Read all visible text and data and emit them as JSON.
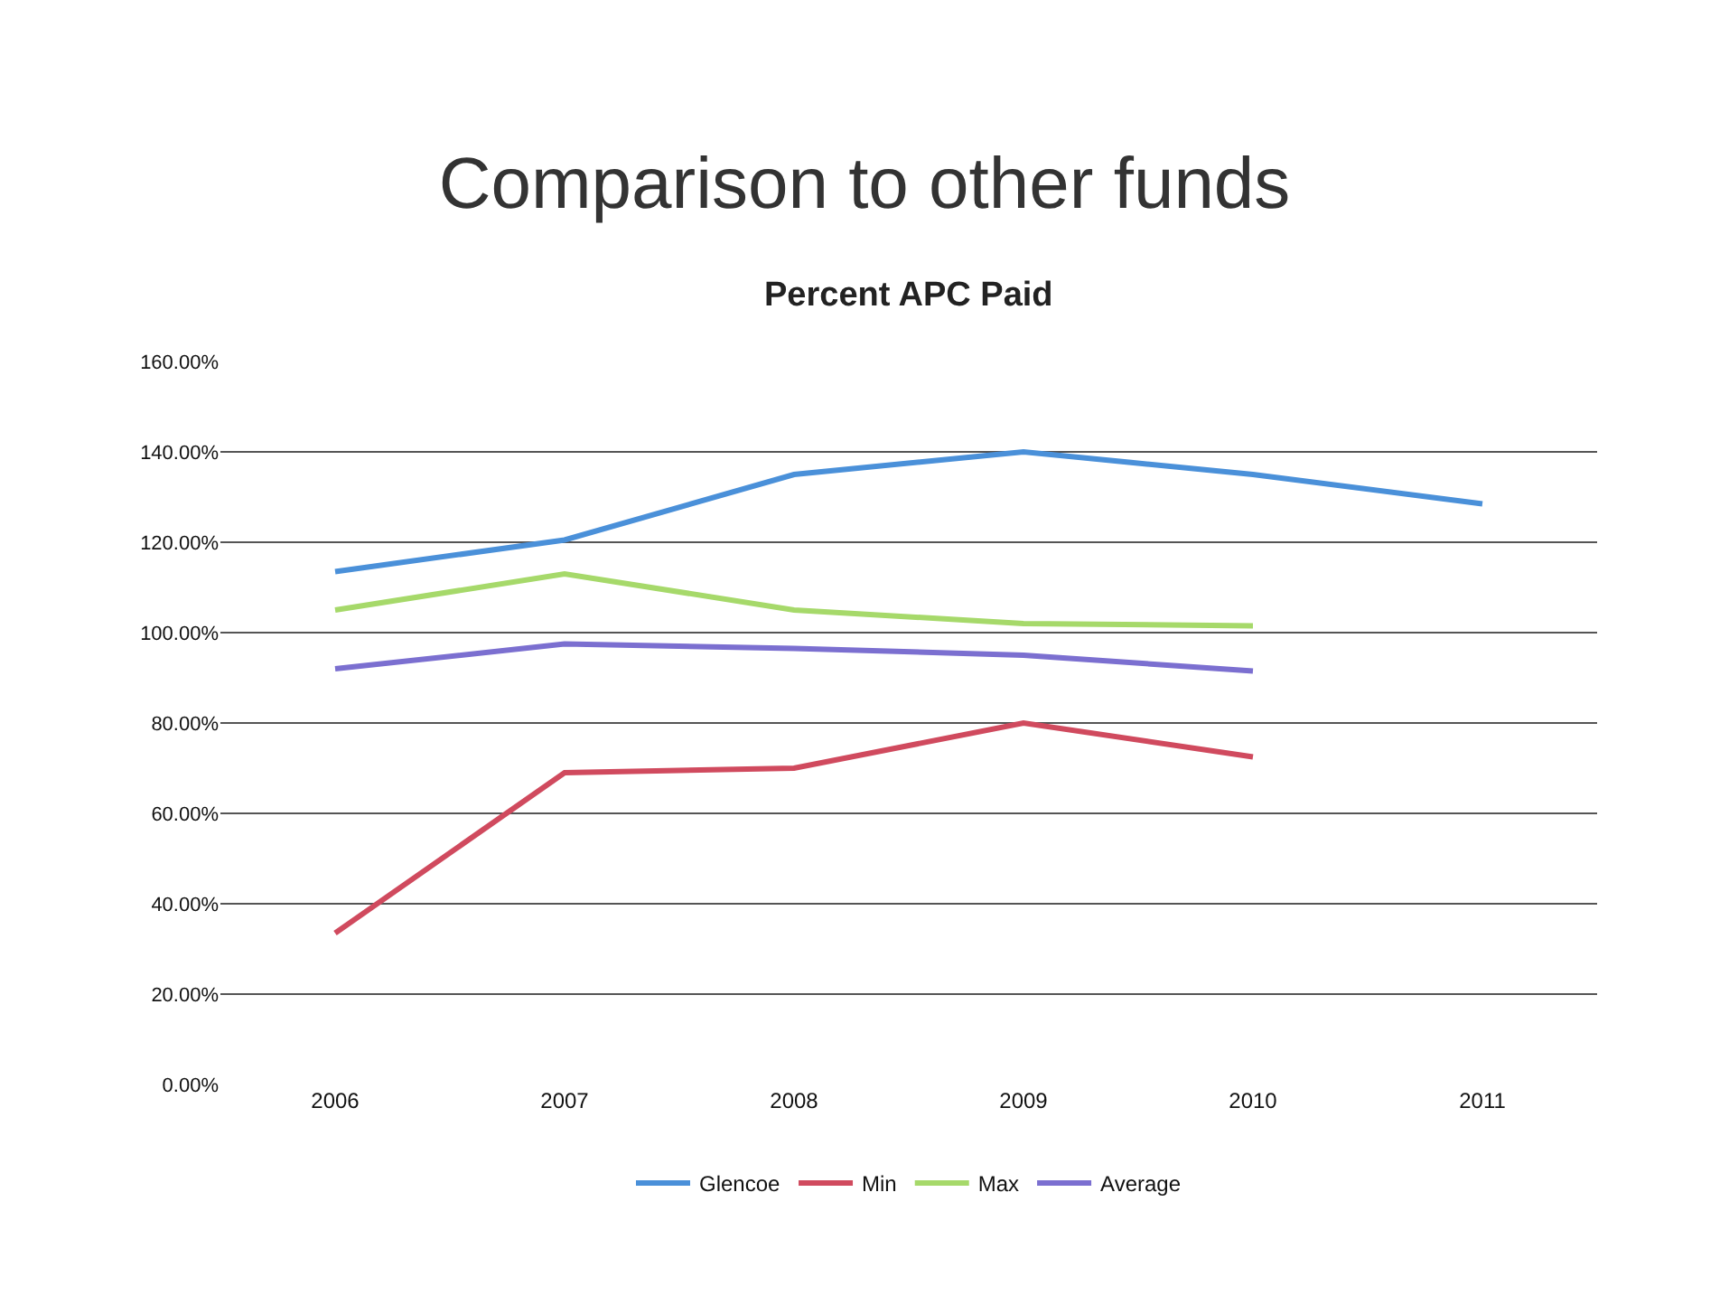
{
  "chart_data": {
    "type": "line",
    "title": "Comparison to other funds",
    "subtitle": "Percent APC Paid",
    "categories": [
      "2006",
      "2007",
      "2008",
      "2009",
      "2010",
      "2011"
    ],
    "series": [
      {
        "name": "Glencoe",
        "color": "#4a90d9",
        "values": [
          113.5,
          120.5,
          135,
          140,
          135,
          128.5
        ]
      },
      {
        "name": "Min",
        "color": "#d04a5e",
        "values": [
          33.5,
          69,
          70,
          80,
          72.5,
          null
        ]
      },
      {
        "name": "Max",
        "color": "#a6d96a",
        "values": [
          105,
          113,
          105,
          102,
          101.5,
          null
        ]
      },
      {
        "name": "Average",
        "color": "#7b6fd0",
        "values": [
          92,
          97.5,
          96.5,
          95,
          91.5,
          null
        ]
      }
    ],
    "ylim": [
      0,
      160
    ],
    "yticks": [
      {
        "value": 0,
        "label": "0.00%"
      },
      {
        "value": 20,
        "label": "20.00%"
      },
      {
        "value": 40,
        "label": "40.00%"
      },
      {
        "value": 60,
        "label": "60.00%"
      },
      {
        "value": 80,
        "label": "80.00%"
      },
      {
        "value": 100,
        "label": "100.00%"
      },
      {
        "value": 120,
        "label": "120.00%"
      },
      {
        "value": 140,
        "label": "140.00%"
      },
      {
        "value": 160,
        "label": "160.00%"
      }
    ],
    "grid": "y",
    "legend": "bottom",
    "marker": "none",
    "line_style": "solid"
  }
}
